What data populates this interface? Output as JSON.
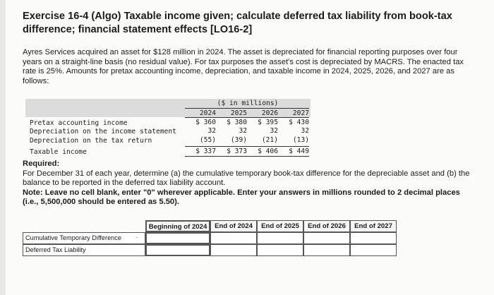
{
  "title": "Exercise 16-4 (Algo) Taxable income given; calculate deferred tax liability from book-tax difference; financial statement effects [LO16-2]",
  "intro": "Ayres Services acquired an asset for $128 million in 2024. The asset is depreciated for financial reporting purposes over four years on a straight-line basis (no residual value). For tax purposes the asset's cost is depreciated by MACRS. The enacted tax rate is 25%. Amounts for pretax accounting income, depreciation, and taxable income in 2024, 2025, 2026, and 2027 are as follows:",
  "table": {
    "unit_label": "($ in millions)",
    "years": [
      "2024",
      "2025",
      "2026",
      "2027"
    ],
    "rows": [
      {
        "label": "Pretax accounting income",
        "values": [
          "$ 360",
          "$ 380",
          "$ 395",
          "$ 430"
        ]
      },
      {
        "label": "Depreciation on the income statement",
        "values": [
          "32",
          "32",
          "32",
          "32"
        ]
      },
      {
        "label": "Depreciation on the tax return",
        "values": [
          "(55)",
          "(39)",
          "(21)",
          "(13)"
        ]
      },
      {
        "label": "Taxable income",
        "values": [
          "$ 337",
          "$ 373",
          "$ 406",
          "$ 449"
        ]
      }
    ]
  },
  "required": {
    "heading": "Required:",
    "text": "For December 31 of each year, determine (a) the cumulative temporary book-tax difference for the depreciable asset and (b) the balance to be reported in the deferred tax liability account.",
    "note": "Note: Leave no cell blank, enter \"0\" wherever applicable. Enter your answers in millions rounded to 2 decimal places (i.e., 5,500,000 should be entered as 5.50)."
  },
  "answer_table": {
    "columns": [
      "Beginning of 2024",
      "End of 2024",
      "End of 2025",
      "End of 2026",
      "End of 2027"
    ],
    "rows": [
      "Cumulative Temporary Difference",
      "Deferred Tax Liability"
    ]
  }
}
